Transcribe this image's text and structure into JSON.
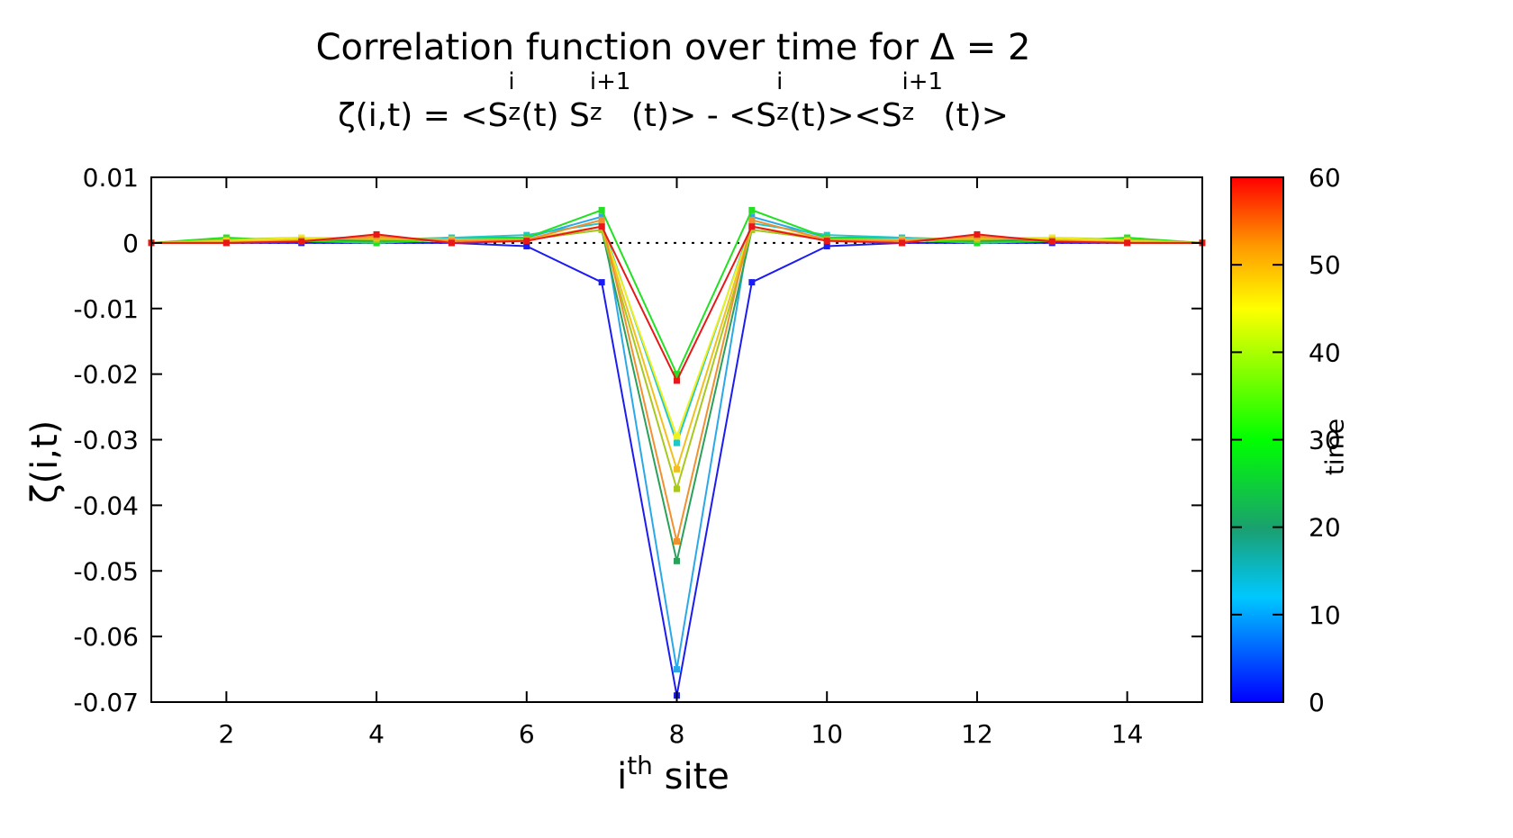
{
  "chart_data": {
    "type": "line",
    "title": "Correlation function over time for Δ = 2",
    "subtitle_parts": {
      "lhs": "ζ(i,t) = <S",
      "sup1": "i",
      "sub1": "z",
      "mid1": "(t) S",
      "sup2": "i+1",
      "sub2": "z",
      "mid2": "(t)> - <S",
      "sup3": "i",
      "sub3": "z",
      "mid3": "(t)><S",
      "sup4": "i+1",
      "sub4": "z",
      "end": "(t)>"
    },
    "xlabel_base": "i",
    "xlabel_sup": "th",
    "xlabel_rest": " site",
    "ylabel": "ζ(i,t)",
    "colorbar_label": "time",
    "xlim": [
      1,
      15
    ],
    "ylim": [
      -0.07,
      0.01
    ],
    "xticks": [
      "2",
      "4",
      "6",
      "8",
      "10",
      "12",
      "14"
    ],
    "yticks": [
      "0.01",
      "0",
      "-0.01",
      "-0.02",
      "-0.03",
      "-0.04",
      "-0.05",
      "-0.06",
      "-0.07"
    ],
    "colorbar_ticks": [
      "0",
      "10",
      "20",
      "30",
      "40",
      "50",
      "60"
    ],
    "colorbar_range": [
      0,
      60
    ],
    "zero_line": true,
    "x": [
      1,
      2,
      3,
      4,
      5,
      6,
      7,
      8,
      9,
      10,
      11,
      12,
      13,
      14,
      15
    ],
    "series": [
      {
        "time": 0,
        "color": "#1c1cf0",
        "values": [
          0,
          0,
          0,
          0,
          0,
          -0.0005,
          -0.006,
          -0.069,
          -0.006,
          -0.0005,
          0,
          0,
          0,
          0,
          0
        ]
      },
      {
        "time": 10,
        "color": "#2aa8e8",
        "values": [
          0,
          0,
          0.0003,
          0.0003,
          0.0008,
          0.0008,
          0.004,
          -0.065,
          0.004,
          0.0008,
          0.0008,
          0.0003,
          0.0003,
          0,
          0
        ]
      },
      {
        "time": 15,
        "color": "#22c8c8",
        "values": [
          0,
          0.0003,
          0.0003,
          0.0005,
          0.0008,
          0.0012,
          0.003,
          -0.0305,
          0.003,
          0.0012,
          0.0008,
          0.0005,
          0.0003,
          0.0003,
          0
        ]
      },
      {
        "time": 23,
        "color": "#2aa05a",
        "values": [
          0,
          0.0005,
          0.0005,
          0.0003,
          0.0005,
          0.0005,
          0.002,
          -0.0485,
          0.002,
          0.0005,
          0.0005,
          0.0003,
          0.0005,
          0.0005,
          0
        ]
      },
      {
        "time": 30,
        "color": "#22e022",
        "values": [
          0,
          0.0008,
          0.0003,
          0,
          0.0005,
          0.0008,
          0.005,
          -0.02,
          0.005,
          0.0008,
          0.0005,
          0,
          0.0003,
          0.0008,
          0
        ]
      },
      {
        "time": 38,
        "color": "#a8c820",
        "values": [
          0,
          0.0005,
          0.0008,
          0.0005,
          0.0005,
          0.0005,
          0.002,
          -0.0375,
          0.002,
          0.0005,
          0.0005,
          0.0005,
          0.0008,
          0.0005,
          0
        ]
      },
      {
        "time": 43,
        "color": "#f0f020",
        "values": [
          0,
          0.0003,
          0.0008,
          0.0008,
          0.0005,
          0.0005,
          0.0025,
          -0.0295,
          0.0025,
          0.0005,
          0.0005,
          0.0008,
          0.0008,
          0.0003,
          0
        ]
      },
      {
        "time": 48,
        "color": "#f0c020",
        "values": [
          0,
          0.0002,
          0.0005,
          0.0008,
          0.0005,
          0.0005,
          0.0025,
          -0.0345,
          0.0025,
          0.0005,
          0.0005,
          0.0008,
          0.0005,
          0.0002,
          0
        ]
      },
      {
        "time": 53,
        "color": "#f09030",
        "values": [
          0,
          0,
          0.0003,
          0.001,
          0.0003,
          0.0005,
          0.0035,
          -0.0455,
          0.0035,
          0.0005,
          0.0003,
          0.001,
          0.0003,
          0,
          0
        ]
      },
      {
        "time": 60,
        "color": "#e81818",
        "values": [
          0,
          0,
          0.0002,
          0.0013,
          0,
          0.0003,
          0.0025,
          -0.021,
          0.0025,
          0.0003,
          0,
          0.0013,
          0.0002,
          0,
          0
        ]
      }
    ]
  }
}
